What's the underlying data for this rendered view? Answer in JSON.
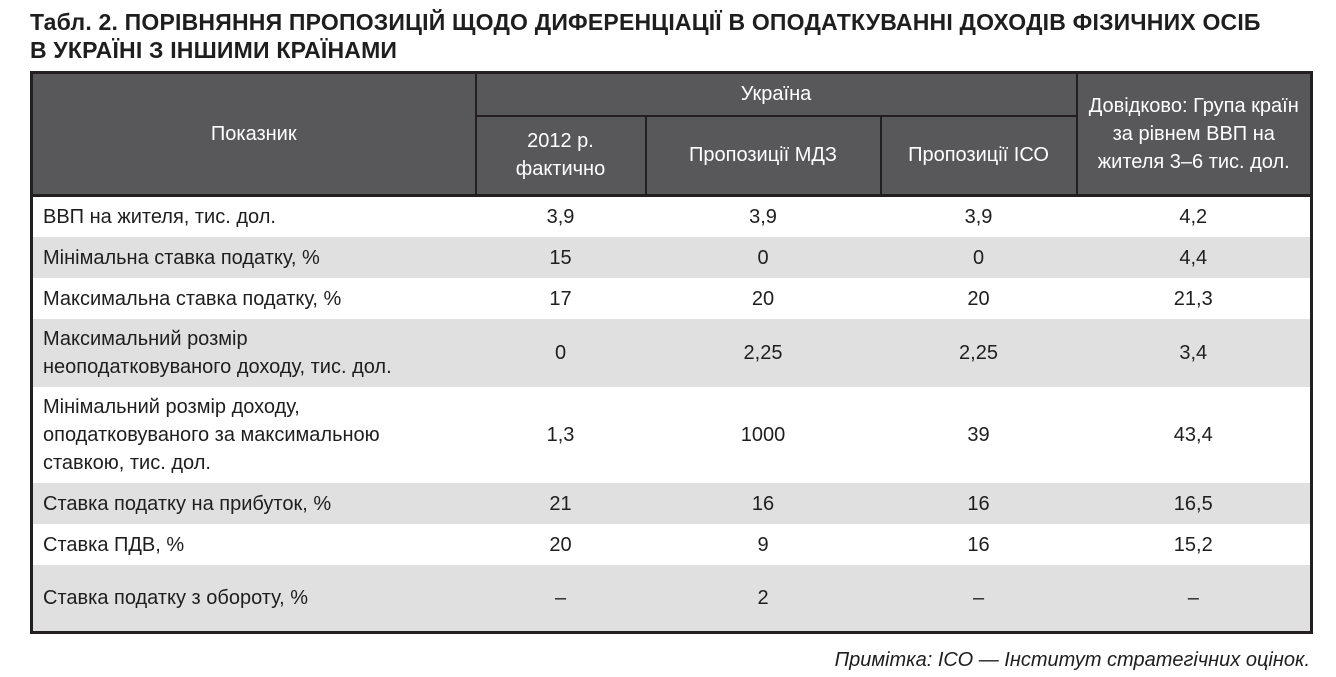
{
  "title": {
    "line1": "Табл. 2. ПОРІВНЯННЯ ПРОПОЗИЦІЙ ЩОДО ДИФЕРЕНЦІАЦІЇ В ОПОДАТКУВАННІ ДОХОДІВ ФІЗИЧНИХ ОСІБ",
    "line2": "В УКРАЇНІ З ІНШИМИ КРАЇНАМИ"
  },
  "table": {
    "header": {
      "indicator": "Показник",
      "ukraine_group": "Україна",
      "sub_columns": [
        "2012 р. фактично",
        "Пропозиції МДЗ",
        "Пропозиції ІСО"
      ],
      "reference": "Довідково: Група країн за рівнем ВВП на жителя 3–6 тис. дол."
    },
    "rows": [
      {
        "label": "ВВП на жителя, тис. дол.",
        "values": [
          "3,9",
          "3,9",
          "3,9",
          "4,2"
        ]
      },
      {
        "label": "Мінімальна ставка податку, %",
        "values": [
          "15",
          "0",
          "0",
          "4,4"
        ]
      },
      {
        "label": "Максимальна ставка податку, %",
        "values": [
          "17",
          "20",
          "20",
          "21,3"
        ]
      },
      {
        "label": "Максимальний розмір неоподатковуваного доходу, тис. дол.",
        "values": [
          "0",
          "2,25",
          "2,25",
          "3,4"
        ]
      },
      {
        "label": "Мінімальний розмір доходу, оподатковуваного за максимальною ставкою, тис. дол.",
        "values": [
          "1,3",
          "1000",
          "39",
          "43,4"
        ]
      },
      {
        "label": "Ставка податку на прибуток, %",
        "values": [
          "21",
          "16",
          "16",
          "16,5"
        ]
      },
      {
        "label": "Ставка ПДВ, %",
        "values": [
          "20",
          "9",
          "16",
          "15,2"
        ]
      },
      {
        "label": "Ставка податку з обороту, %",
        "values": [
          "–",
          "2",
          "–",
          "–"
        ]
      }
    ],
    "note": "Примітка: ІСО — Інститут стратегічних оцінок."
  },
  "chart_data": {
    "type": "table",
    "title": "Табл. 2. ПОРІВНЯННЯ ПРОПОЗИЦІЙ ЩОДО ДИФЕРЕНЦІАЦІЇ В ОПОДАТКУВАННІ ДОХОДІВ ФІЗИЧНИХ ОСІБ В УКРАЇНІ З ІНШИМИ КРАЇНАМИ",
    "columns": [
      "Показник",
      "Україна — 2012 р. фактично",
      "Україна — Пропозиції МДЗ",
      "Україна — Пропозиції ІСО",
      "Довідково: Група країн за рівнем ВВП на жителя 3–6 тис. дол."
    ],
    "rows": [
      [
        "ВВП на жителя, тис. дол.",
        "3,9",
        "3,9",
        "3,9",
        "4,2"
      ],
      [
        "Мінімальна ставка податку, %",
        "15",
        "0",
        "0",
        "4,4"
      ],
      [
        "Максимальна ставка податку, %",
        "17",
        "20",
        "20",
        "21,3"
      ],
      [
        "Максимальний розмір неоподатковуваного доходу, тис. дол.",
        "0",
        "2,25",
        "2,25",
        "3,4"
      ],
      [
        "Мінімальний розмір доходу, оподатковуваного за максимальною ставкою, тис. дол.",
        "1,3",
        "1000",
        "39",
        "43,4"
      ],
      [
        "Ставка податку на прибуток, %",
        "21",
        "16",
        "16",
        "16,5"
      ],
      [
        "Ставка ПДВ, %",
        "20",
        "9",
        "16",
        "15,2"
      ],
      [
        "Ставка податку з обороту, %",
        "–",
        "2",
        "–",
        "–"
      ]
    ],
    "note": "Примітка: ІСО — Інститут стратегічних оцінок."
  },
  "colors": {
    "header_bg": "#58585a",
    "header_text": "#ffffff",
    "row_alt_bg": "#e0e0e0",
    "border": "#231f20"
  }
}
